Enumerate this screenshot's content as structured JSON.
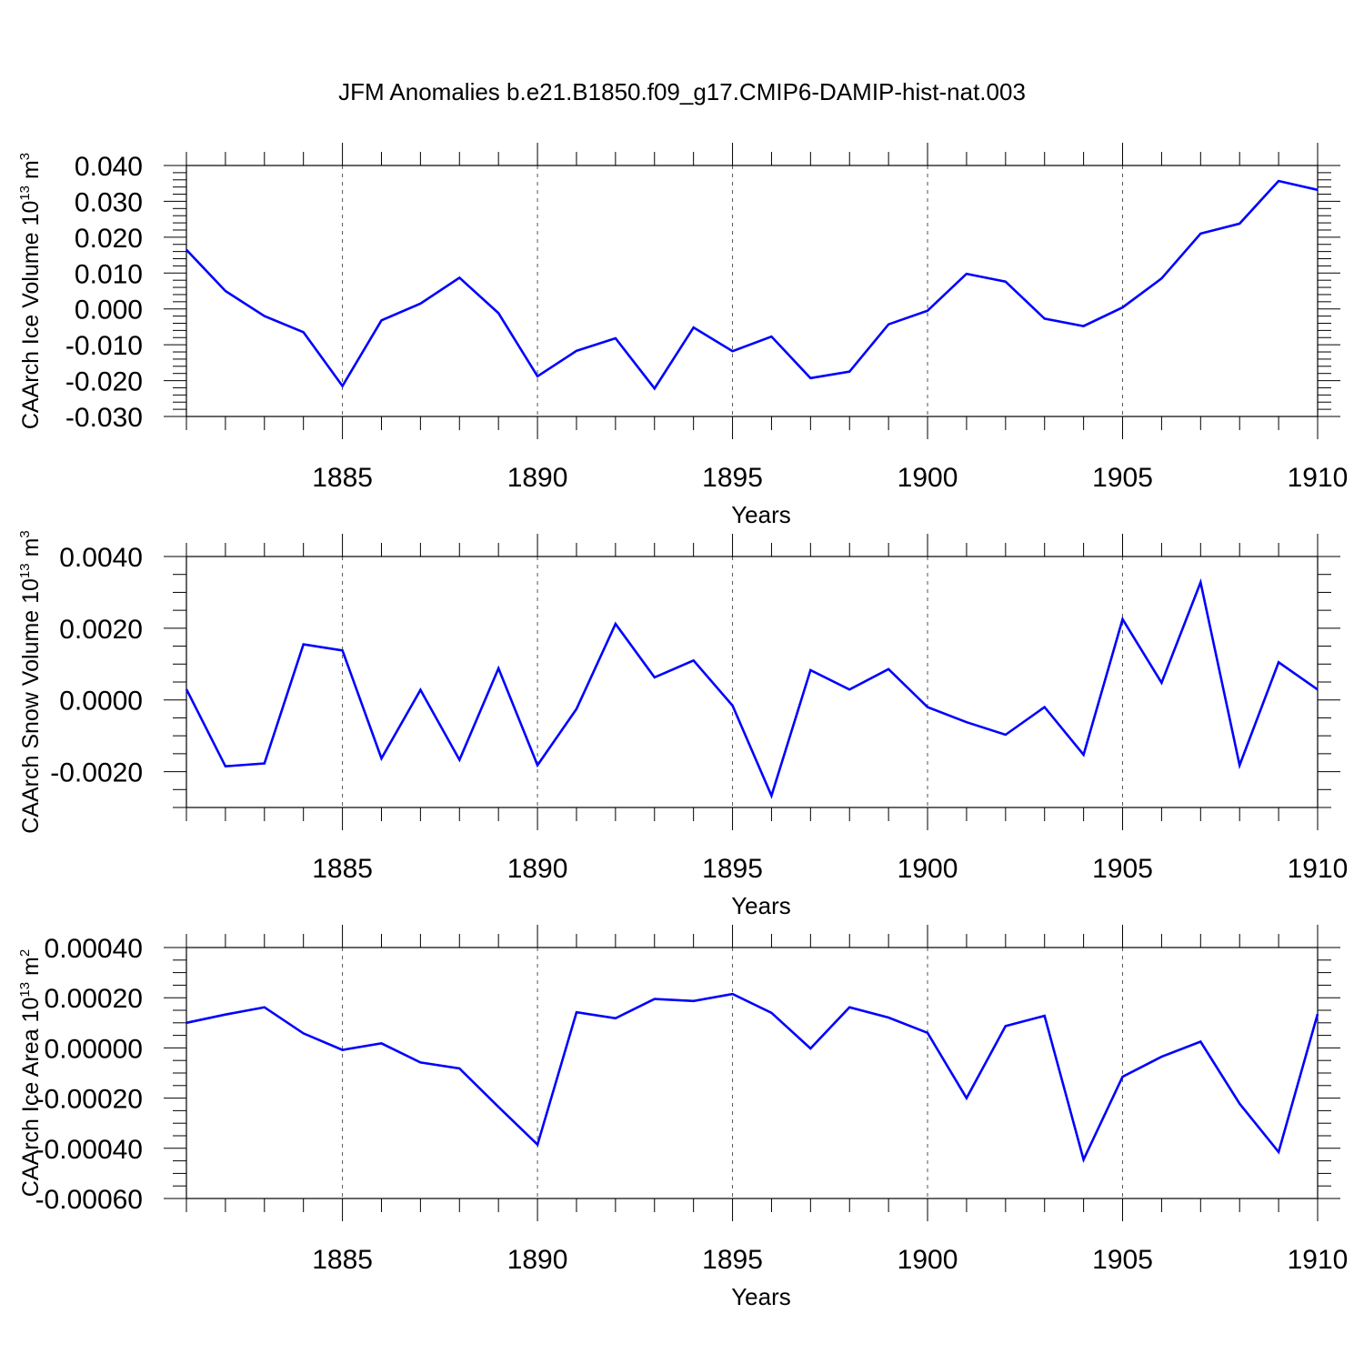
{
  "figure_title": "JFM Anomalies b.e21.B1850.f09_g17.CMIP6-DAMIP-hist-nat.003",
  "colors": {
    "line": "#0000ff",
    "axis": "#000000",
    "grid": "#555555"
  },
  "chart_data": [
    {
      "type": "line",
      "title": "JFM Anomalies b.e21.B1850.f09_g17.CMIP6-DAMIP-hist-nat.003",
      "xlabel": "Years",
      "ylabel": "CAArch Ice Volume 10",
      "ylabel_sup": "13",
      "ylabel_unit": "m",
      "ylabel_unit_sup": "3",
      "xlim": [
        1881,
        1910
      ],
      "ylim": [
        -0.03,
        0.04
      ],
      "grid": "vertical dashed at major x ticks",
      "x_ticks": [
        1885,
        1890,
        1895,
        1900,
        1905,
        1910
      ],
      "x_tick_labels": [
        "1885",
        "1890",
        "1895",
        "1900",
        "1905",
        "1910"
      ],
      "y_ticks": [
        -0.03,
        -0.02,
        -0.01,
        0.0,
        0.01,
        0.02,
        0.03,
        0.04
      ],
      "y_tick_labels": [
        "-0.030",
        "-0.020",
        "-0.010",
        "0.000",
        "0.010",
        "0.020",
        "0.030",
        "0.040"
      ],
      "y_minor_step": 0.002,
      "x": [
        1881,
        1882,
        1883,
        1884,
        1885,
        1886,
        1887,
        1888,
        1889,
        1890,
        1891,
        1892,
        1893,
        1894,
        1895,
        1896,
        1897,
        1898,
        1899,
        1900,
        1901,
        1902,
        1903,
        1904,
        1905,
        1906,
        1907,
        1908,
        1909,
        1910
      ],
      "series": [
        {
          "name": "CAArch Ice Volume",
          "values": [
            0.0165,
            0.005,
            -0.002,
            -0.0065,
            -0.0215,
            -0.0032,
            0.0015,
            0.0087,
            -0.0012,
            -0.0188,
            -0.0117,
            -0.0082,
            -0.0222,
            -0.0052,
            -0.0118,
            -0.0077,
            -0.0193,
            -0.0175,
            -0.0043,
            -0.0005,
            0.0098,
            0.0076,
            -0.0027,
            -0.0048,
            0.0004,
            0.0085,
            0.021,
            0.0238,
            0.0357,
            0.0332
          ]
        }
      ]
    },
    {
      "type": "line",
      "xlabel": "Years",
      "ylabel": "CAArch Snow Volume 10",
      "ylabel_sup": "13",
      "ylabel_unit": "m",
      "ylabel_unit_sup": "3",
      "xlim": [
        1881,
        1910
      ],
      "ylim": [
        -0.003,
        0.004
      ],
      "grid": "vertical dashed at major x ticks",
      "x_ticks": [
        1885,
        1890,
        1895,
        1900,
        1905,
        1910
      ],
      "x_tick_labels": [
        "1885",
        "1890",
        "1895",
        "1900",
        "1905",
        "1910"
      ],
      "y_ticks": [
        -0.002,
        0.0,
        0.002,
        0.004
      ],
      "y_tick_labels": [
        "-0.0020",
        "0.0000",
        "0.0020",
        "0.0040"
      ],
      "y_minor_step": 0.0005,
      "x": [
        1881,
        1882,
        1883,
        1884,
        1885,
        1886,
        1887,
        1888,
        1889,
        1890,
        1891,
        1892,
        1893,
        1894,
        1895,
        1896,
        1897,
        1898,
        1899,
        1900,
        1901,
        1902,
        1903,
        1904,
        1905,
        1906,
        1907,
        1908,
        1909,
        1910
      ],
      "series": [
        {
          "name": "CAArch Snow Volume",
          "values": [
            0.0003,
            -0.00185,
            -0.00177,
            0.00155,
            0.00138,
            -0.00163,
            0.00028,
            -0.00167,
            0.00088,
            -0.00182,
            -0.00025,
            0.00212,
            0.00063,
            0.0011,
            -0.00016,
            -0.00267,
            0.00083,
            0.00029,
            0.00086,
            -0.0002,
            -0.00062,
            -0.00097,
            -0.0002,
            -0.00153,
            0.00225,
            0.00048,
            0.00328,
            -0.00182,
            0.00105,
            0.00029
          ]
        }
      ]
    },
    {
      "type": "line",
      "xlabel": "Years",
      "ylabel": "CAArch Ice Area 10",
      "ylabel_sup": "13",
      "ylabel_unit": "m",
      "ylabel_unit_sup": "2",
      "xlim": [
        1881,
        1910
      ],
      "ylim": [
        -0.0006,
        0.0004
      ],
      "grid": "vertical dashed at major x ticks",
      "x_ticks": [
        1885,
        1890,
        1895,
        1900,
        1905,
        1910
      ],
      "x_tick_labels": [
        "1885",
        "1890",
        "1895",
        "1900",
        "1905",
        "1910"
      ],
      "y_ticks": [
        -0.0006,
        -0.0004,
        -0.0002,
        0.0,
        0.0002,
        0.0004
      ],
      "y_tick_labels": [
        "-0.00060",
        "-0.00040",
        "-0.00020",
        "0.00000",
        "0.00020",
        "0.00040"
      ],
      "y_minor_step": 5e-05,
      "x": [
        1881,
        1882,
        1883,
        1884,
        1885,
        1886,
        1887,
        1888,
        1889,
        1890,
        1891,
        1892,
        1893,
        1894,
        1895,
        1896,
        1897,
        1898,
        1899,
        1900,
        1901,
        1902,
        1903,
        1904,
        1905,
        1906,
        1907,
        1908,
        1909,
        1910
      ],
      "series": [
        {
          "name": "CAArch Ice Area",
          "values": [
            0.0001,
            0.000133,
            0.000162,
            5.8e-05,
            -8e-06,
            1.8e-05,
            -5.8e-05,
            -8.2e-05,
            -0.000235,
            -0.000385,
            0.000142,
            0.000118,
            0.000195,
            0.000187,
            0.000215,
            0.00014,
            -2e-06,
            0.000162,
            0.000121,
            6e-05,
            -0.0002,
            8.7e-05,
            0.000128,
            -0.000445,
            -0.000115,
            -3.5e-05,
            2.5e-05,
            -0.000222,
            -0.000415,
            0.000135
          ]
        }
      ]
    }
  ]
}
